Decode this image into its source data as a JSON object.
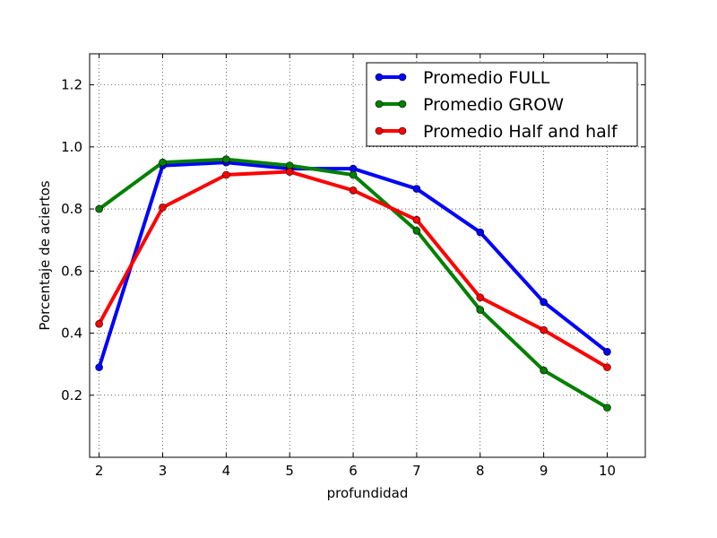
{
  "chart_data": {
    "type": "line",
    "title": "",
    "xlabel": "profundidad",
    "ylabel": "Porcentaje de aciertos",
    "xlim": [
      1.85,
      10.6
    ],
    "ylim": [
      0.0,
      1.3
    ],
    "xticks": [
      2,
      3,
      4,
      5,
      6,
      7,
      8,
      9,
      10
    ],
    "yticks": [
      0.2,
      0.4,
      0.6,
      0.8,
      1.0,
      1.2
    ],
    "ytick_labels": [
      "0.2",
      "0.4",
      "0.6",
      "0.8",
      "1.0",
      "1.2"
    ],
    "grid": true,
    "legend_position": "top-right",
    "x": [
      2,
      3,
      4,
      5,
      6,
      7,
      8,
      9,
      10
    ],
    "series": [
      {
        "name": "Promedio FULL",
        "color": "#0000ff",
        "values": [
          0.29,
          0.94,
          0.95,
          0.93,
          0.93,
          0.865,
          0.725,
          0.5,
          0.34
        ]
      },
      {
        "name": "Promedio GROW",
        "color": "#008000",
        "values": [
          0.8,
          0.95,
          0.96,
          0.94,
          0.91,
          0.73,
          0.475,
          0.28,
          0.16
        ]
      },
      {
        "name": "Promedio Half and half",
        "color": "#ff0000",
        "values": [
          0.43,
          0.805,
          0.91,
          0.92,
          0.86,
          0.765,
          0.515,
          0.41,
          0.29
        ]
      }
    ]
  }
}
